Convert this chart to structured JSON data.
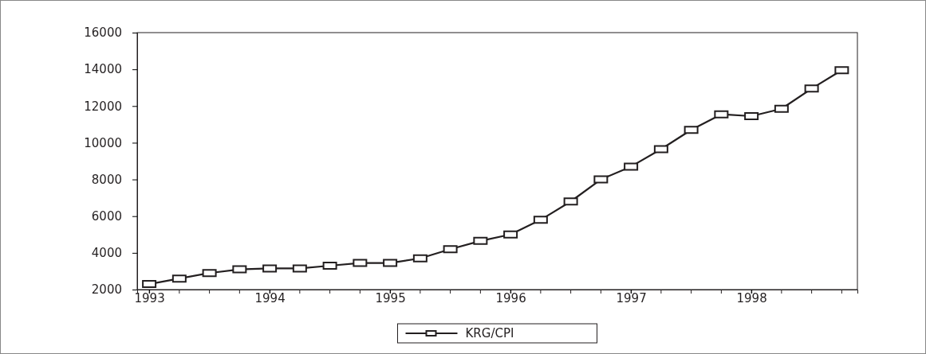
{
  "chart_data": {
    "type": "line",
    "x": [
      1993,
      1993.25,
      1993.5,
      1993.75,
      1994,
      1994.25,
      1994.5,
      1994.75,
      1995,
      1995.25,
      1995.5,
      1995.75,
      1996,
      1996.25,
      1996.5,
      1996.75,
      1997,
      1997.25,
      1997.5,
      1997.75,
      1998,
      1998.25,
      1998.5,
      1998.75
    ],
    "xlim": [
      1992.9,
      1998.88
    ],
    "xticks": [
      1993,
      1994,
      1995,
      1996,
      1997,
      1998
    ],
    "ylim": [
      2000,
      16000
    ],
    "yticks": [
      2000,
      4000,
      6000,
      8000,
      10000,
      12000,
      14000,
      16000
    ],
    "series": [
      {
        "name": "KRG/CPI",
        "color": "#231f20",
        "values": [
          2300,
          2600,
          2900,
          3100,
          3150,
          3150,
          3300,
          3450,
          3450,
          3700,
          4200,
          4650,
          5000,
          5800,
          6800,
          8000,
          8700,
          9650,
          10700,
          11550,
          11450,
          11850,
          12950,
          13950
        ]
      }
    ],
    "marker": "square",
    "line_style": "solid",
    "legend": "bottom",
    "grid": false
  }
}
